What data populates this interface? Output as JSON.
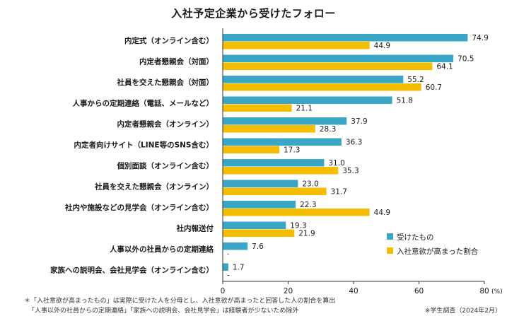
{
  "chart_data": {
    "type": "bar",
    "orientation": "horizontal",
    "title": "入社予定企業から受けたフォロー",
    "categories": [
      "内定式（オンライン含む）",
      "内定者懇親会（対面）",
      "社員を交えた懇親会（対面）",
      "人事からの定期連絡（電話、メールなど）",
      "内定者懇親会（オンライン）",
      "内定者向けサイト（LINE等のSNS含む）",
      "個別面談（オンライン含む）",
      "社員を交えた懇親会（オンライン）",
      "社内や施設などの見学会（オンライン含む）",
      "社内報送付",
      "人事以外の社員からの定期連絡",
      "家族への説明会、会社見学会（オンライン含む）"
    ],
    "series": [
      {
        "name": "受けたもの",
        "color": "#3aa6c6",
        "values": [
          74.9,
          70.5,
          55.2,
          51.8,
          37.9,
          36.3,
          31.0,
          23.0,
          22.3,
          19.3,
          7.6,
          1.7
        ],
        "labels": [
          "74.9",
          "70.5",
          "55.2",
          "51.8",
          "37.9",
          "36.3",
          "31.0",
          "23.0",
          "22.3",
          "19.3",
          "7.6",
          "1.7"
        ]
      },
      {
        "name": "入社意欲が高まった割合",
        "color": "#f5bd00",
        "values": [
          44.9,
          64.1,
          60.7,
          21.1,
          28.3,
          17.3,
          35.3,
          31.7,
          44.9,
          21.9,
          null,
          null
        ],
        "labels": [
          "44.9",
          "64.1",
          "60.7",
          "21.1",
          "28.3",
          "17.3",
          "35.3",
          "31.7",
          "44.9",
          "21.9",
          "",
          "-"
        ]
      }
    ],
    "x_ticks": [
      "0",
      "20",
      "40",
      "60",
      "80"
    ],
    "x_unit": "(%)",
    "xlim": [
      0,
      80
    ],
    "legend_position": "bottom-right"
  },
  "notes": {
    "line1": "＊「入社意欲が高まったもの」は実際に受けた人を分母とし、入社意欲が高まったと回答した人の割合を算出",
    "line2": "「人事以外の社員からの定期連絡」「家族への説明会、会社見学会」は経験者が少ないため除外",
    "source": "※学生調査（2024年2月）"
  }
}
